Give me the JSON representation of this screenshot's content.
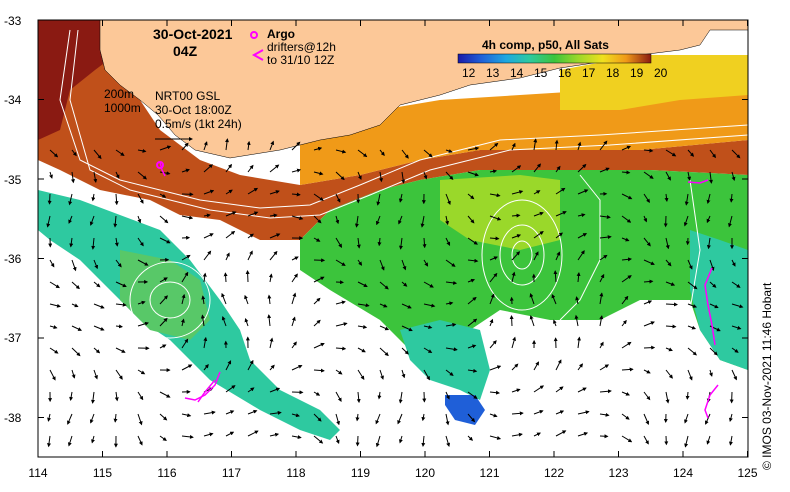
{
  "header": {
    "date": "30-Oct-2021",
    "time": "04Z",
    "argo_label": "Argo",
    "drifters_line1": "drifters@12h",
    "drifters_line2": "to 31/10 12Z",
    "composite": "4h comp, p50, All Sats",
    "depth_200": "200m",
    "depth_1000": "1000m",
    "nrt_line1": "NRT00 GSL",
    "nrt_line2": "30-Oct 18:00Z",
    "nrt_line3": "0.5m/s (1kt 24h)"
  },
  "colorbar": {
    "ticks": [
      "12",
      "13",
      "14",
      "15",
      "16",
      "17",
      "18",
      "19",
      "20"
    ],
    "colors": [
      "#1a1aa8",
      "#1f5fd8",
      "#1fa8e0",
      "#2ec9a0",
      "#3cc43c",
      "#9ad82a",
      "#f0e01e",
      "#f09a18",
      "#d8481a",
      "#8a1a12"
    ]
  },
  "axes": {
    "lat_labels": [
      "-33",
      "-34",
      "-35",
      "-36",
      "-37",
      "-38"
    ],
    "lon_labels": [
      "114",
      "115",
      "116",
      "117",
      "118",
      "119",
      "120",
      "121",
      "122",
      "123",
      "124",
      "125"
    ]
  },
  "credit": "© IMOS 03-Nov-2021 11:46 Hobart",
  "colors": {
    "land": "#fcc898",
    "argo": "#ff00ff",
    "drifter": "#ff00ff"
  }
}
